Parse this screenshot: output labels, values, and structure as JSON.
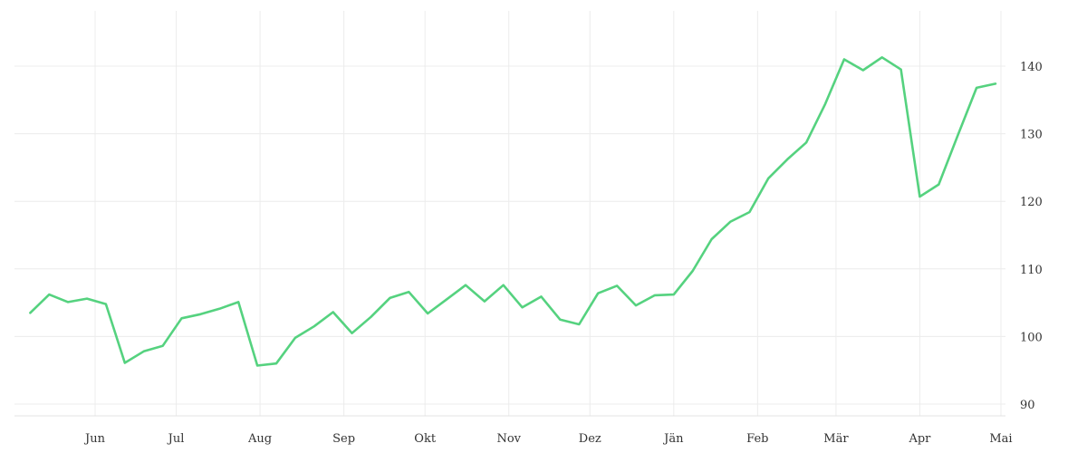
{
  "chart_data": {
    "type": "line",
    "title": "",
    "xlabel": "",
    "ylabel": "",
    "x_tick_labels": [
      "Jun",
      "Jul",
      "Aug",
      "Sep",
      "Okt",
      "Nov",
      "Dez",
      "Jän",
      "Feb",
      "Mär",
      "Apr",
      "Mai"
    ],
    "y_ticks": [
      90,
      100,
      110,
      120,
      130,
      140
    ],
    "ylim": [
      88,
      148
    ],
    "grid": true,
    "y_axis_position": "right",
    "series": [
      {
        "color": "#55d27f",
        "x": [
          "2023-05-08",
          "2023-05-15",
          "2023-05-22",
          "2023-05-29",
          "2023-06-05",
          "2023-06-12",
          "2023-06-19",
          "2023-06-26",
          "2023-07-03",
          "2023-07-10",
          "2023-07-17",
          "2023-07-24",
          "2023-07-31",
          "2023-08-07",
          "2023-08-14",
          "2023-08-21",
          "2023-08-28",
          "2023-09-04",
          "2023-09-11",
          "2023-09-18",
          "2023-09-25",
          "2023-10-02",
          "2023-10-09",
          "2023-10-16",
          "2023-10-23",
          "2023-10-30",
          "2023-11-06",
          "2023-11-13",
          "2023-11-20",
          "2023-11-27",
          "2023-12-04",
          "2023-12-11",
          "2023-12-18",
          "2023-12-25",
          "2024-01-01",
          "2024-01-08",
          "2024-01-15",
          "2024-01-22",
          "2024-01-29",
          "2024-02-05",
          "2024-02-12",
          "2024-02-19",
          "2024-02-26",
          "2024-03-04",
          "2024-03-11",
          "2024-03-18",
          "2024-03-25",
          "2024-04-01",
          "2024-04-08",
          "2024-04-15",
          "2024-04-22",
          "2024-04-29"
        ],
        "y": [
          103.5,
          106.2,
          105.1,
          105.6,
          104.8,
          96.1,
          97.8,
          98.6,
          102.7,
          103.3,
          104.1,
          105.1,
          95.7,
          96.0,
          99.8,
          101.5,
          103.6,
          100.5,
          102.9,
          105.7,
          106.6,
          103.4,
          105.5,
          107.6,
          105.2,
          107.6,
          104.3,
          105.9,
          102.5,
          101.8,
          106.4,
          107.5,
          104.6,
          106.1,
          106.2,
          109.7,
          114.4,
          117.0,
          118.4,
          123.4,
          126.2,
          128.7,
          134.4,
          141.0,
          139.4,
          141.3,
          139.5,
          120.7,
          122.5,
          129.7,
          136.8,
          137.4
        ]
      }
    ]
  }
}
